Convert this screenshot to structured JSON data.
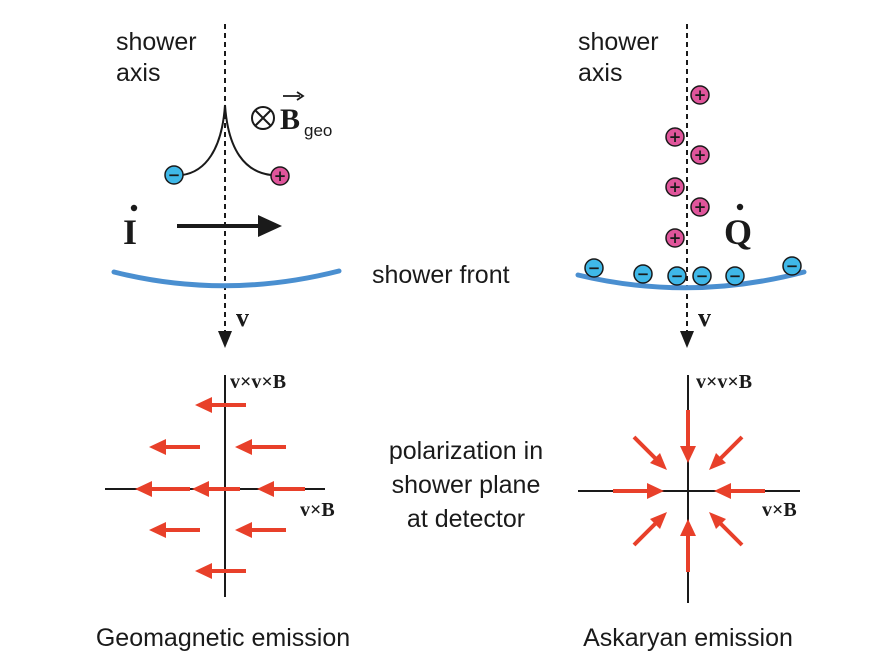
{
  "texts": {
    "left_axis_line1": "shower",
    "left_axis_line2": "axis",
    "right_axis_line1": "shower",
    "right_axis_line2": "axis",
    "b_geo_symbol": "B",
    "b_geo_subscript": "geo",
    "current_symbol": "I",
    "charge_symbol": "Q",
    "shower_front": "shower front",
    "v_left": "v",
    "v_right": "v",
    "left_vvb_label": "v×v×B",
    "left_vb_label": "v×B",
    "right_vvb_label": "v×v×B",
    "right_vb_label": "v×B",
    "polarization_line1": "polarization in",
    "polarization_line2": "shower plane",
    "polarization_line3": "at detector",
    "caption_left": "Geomagnetic emission",
    "caption_right": "Askaryan emission",
    "neg_sign": "−",
    "pos_sign": "+"
  },
  "colors": {
    "positive_charge": "#e0559b",
    "negative_charge": "#3fb8e8",
    "shower_front": "#4a8fd0",
    "polarization_arrow": "#e8402a",
    "ink": "#1a1a1a"
  },
  "icons": {
    "magnetic_field_into_page": "circled-times-icon"
  }
}
